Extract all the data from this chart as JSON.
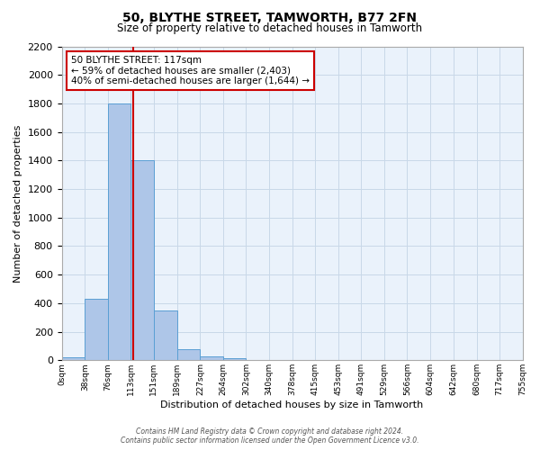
{
  "title": "50, BLYTHE STREET, TAMWORTH, B77 2FN",
  "subtitle": "Size of property relative to detached houses in Tamworth",
  "xlabel": "Distribution of detached houses by size in Tamworth",
  "ylabel": "Number of detached properties",
  "bin_edges": [
    0,
    38,
    76,
    113,
    151,
    189,
    227,
    264,
    302,
    340,
    378,
    415,
    453,
    491,
    529,
    566,
    604,
    642,
    680,
    717,
    755
  ],
  "bar_heights": [
    20,
    430,
    1800,
    1400,
    350,
    75,
    25,
    15,
    0,
    0,
    0,
    0,
    0,
    0,
    0,
    0,
    0,
    0,
    0,
    0
  ],
  "bar_color": "#aec6e8",
  "bar_edge_color": "#5a9fd4",
  "grid_color": "#c8d8e8",
  "bg_color": "#eaf2fb",
  "ylim": [
    0,
    2200
  ],
  "yticks": [
    0,
    200,
    400,
    600,
    800,
    1000,
    1200,
    1400,
    1600,
    1800,
    2000,
    2200
  ],
  "property_size": 117,
  "red_line_color": "#cc0000",
  "annotation_text_line1": "50 BLYTHE STREET: 117sqm",
  "annotation_text_line2": "← 59% of detached houses are smaller (2,403)",
  "annotation_text_line3": "40% of semi-detached houses are larger (1,644) →",
  "annotation_box_color": "#cc0000",
  "footer_line1": "Contains HM Land Registry data © Crown copyright and database right 2024.",
  "footer_line2": "Contains public sector information licensed under the Open Government Licence v3.0."
}
